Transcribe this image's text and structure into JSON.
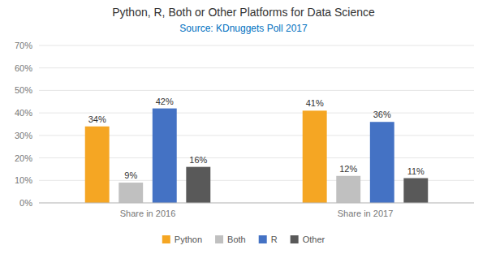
{
  "chart_data": {
    "type": "bar",
    "title": "Python, R, Both or Other Platforms for Data Science",
    "subtitle": "Source: KDnuggets Poll 2017",
    "categories": [
      "Share in 2016",
      "Share in 2017"
    ],
    "series": [
      {
        "name": "Python",
        "color": "#F5A623",
        "values": [
          34,
          41
        ],
        "value_labels": [
          "34%",
          "41%"
        ]
      },
      {
        "name": "Both",
        "color": "#C0C0C0",
        "values": [
          9,
          12
        ],
        "value_labels": [
          "9%",
          "12%"
        ]
      },
      {
        "name": "R",
        "color": "#4472C4",
        "values": [
          42,
          36
        ],
        "value_labels": [
          "42%",
          "36%"
        ]
      },
      {
        "name": "Other",
        "color": "#595959",
        "values": [
          16,
          11
        ],
        "value_labels": [
          "16%",
          "11%"
        ]
      }
    ],
    "ylim": [
      0,
      70
    ],
    "yticks": [
      {
        "value": 0,
        "label": "0%"
      },
      {
        "value": 10,
        "label": "10%"
      },
      {
        "value": 20,
        "label": "20%"
      },
      {
        "value": 30,
        "label": "30%"
      },
      {
        "value": 40,
        "label": "40%"
      },
      {
        "value": 50,
        "label": "50%"
      },
      {
        "value": 60,
        "label": "60%"
      },
      {
        "value": 70,
        "label": "70%"
      }
    ],
    "grid": true,
    "legend": "bottom",
    "data_labels": true
  }
}
